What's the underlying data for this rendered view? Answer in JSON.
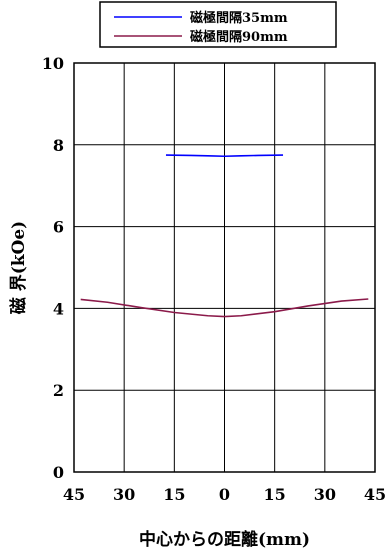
{
  "chart_data": {
    "type": "line",
    "xlabel": "中心からの距離(mm)",
    "ylabel": "磁 界(kOe)",
    "xlim": [
      -45,
      45
    ],
    "ylim": [
      0,
      10
    ],
    "x_ticks": [
      -45,
      -30,
      -15,
      0,
      15,
      30,
      45
    ],
    "x_tick_labels": [
      "45",
      "30",
      "15",
      "0",
      "15",
      "30",
      "45"
    ],
    "y_ticks": [
      0,
      2,
      4,
      6,
      8,
      10
    ],
    "y_tick_labels": [
      "0",
      "2",
      "4",
      "6",
      "8",
      "10"
    ],
    "grid": true,
    "legend_position": "top",
    "series": [
      {
        "name": "磁極間隔35mm",
        "color": "#0000ff",
        "x": [
          -17.5,
          -10,
          -5,
          0,
          5,
          10,
          17.5
        ],
        "y": [
          7.75,
          7.74,
          7.73,
          7.72,
          7.73,
          7.74,
          7.75
        ]
      },
      {
        "name": "磁極間隔90mm",
        "color": "#8b1a4a",
        "x": [
          -43,
          -35,
          -25,
          -15,
          -5,
          0,
          5,
          15,
          25,
          35,
          43
        ],
        "y": [
          4.22,
          4.15,
          4.02,
          3.9,
          3.82,
          3.8,
          3.82,
          3.92,
          4.06,
          4.18,
          4.23
        ]
      }
    ]
  }
}
